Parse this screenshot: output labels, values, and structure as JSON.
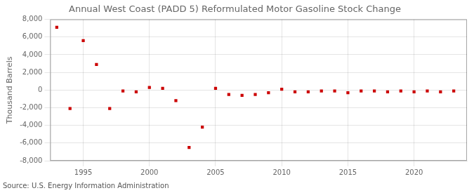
{
  "chart_data": {
    "type": "scatter",
    "title": "Annual West Coast (PADD 5) Reformulated Motor Gasoline Stock Change",
    "ylabel": "Thousand Barrels",
    "annotation": "Source: U.S. Energy Information Administration",
    "x": [
      1993,
      1994,
      1995,
      1996,
      1997,
      1998,
      1999,
      2000,
      2001,
      2002,
      2003,
      2004,
      2005,
      2006,
      2007,
      2008,
      2009,
      2010,
      2011,
      2012,
      2013,
      2014,
      2015,
      2016,
      2017,
      2018,
      2019,
      2020,
      2021,
      2022,
      2023
    ],
    "values": [
      7100,
      -2100,
      5600,
      2900,
      -2100,
      -100,
      -200,
      300,
      200,
      -1200,
      -6500,
      -4200,
      200,
      -500,
      -600,
      -500,
      -300,
      100,
      -200,
      -200,
      -100,
      -100,
      -300,
      -100,
      -100,
      -200,
      -100,
      -200,
      -100,
      -200,
      -100
    ],
    "color": "#cc0000",
    "marker": "square",
    "xlim": [
      1992.5,
      2024
    ],
    "xticks": [
      1995,
      2000,
      2005,
      2010,
      2015,
      2020
    ],
    "ylim": [
      -8000,
      8000
    ],
    "yticks": [
      {
        "value": -8000,
        "label": "-8,000"
      },
      {
        "value": -6000,
        "label": "-6,000"
      },
      {
        "value": -4000,
        "label": "-4,000"
      },
      {
        "value": -2000,
        "label": "-2,000"
      },
      0,
      {
        "value": 2000,
        "label": "2,000"
      },
      {
        "value": 4000,
        "label": "4,000"
      },
      {
        "value": 6000,
        "label": "6,000"
      },
      {
        "value": 8000,
        "label": "8,000"
      }
    ],
    "grid": true
  }
}
